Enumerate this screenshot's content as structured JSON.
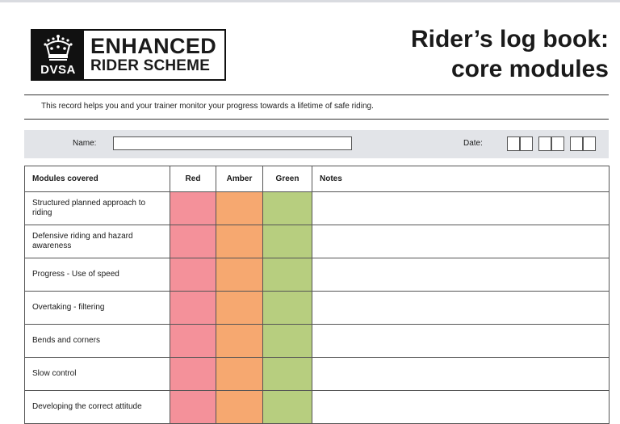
{
  "logo": {
    "line1": "ENHANCED",
    "line2": "RIDER SCHEME",
    "badge": "DVSA",
    "icon": "crown-icon"
  },
  "title": {
    "line1": "Rider’s log book:",
    "line2": "core modules"
  },
  "intro": "This record helps you and your trainer monitor your progress towards a lifetime of safe riding.",
  "form": {
    "name_label": "Name:",
    "name_value": "",
    "date_label": "Date:"
  },
  "table": {
    "headers": {
      "module": "Modules covered",
      "red": "Red",
      "amber": "Amber",
      "green": "Green",
      "notes": "Notes"
    },
    "rows": [
      "Structured planned approach to riding",
      "Defensive riding and hazard awareness",
      "Progress - Use of speed",
      "Overtaking - filtering",
      "Bends and corners",
      "Slow control",
      "Developing the correct attitude"
    ]
  },
  "colors": {
    "red": "#f4919a",
    "amber": "#f6a870",
    "green": "#b7ce7f",
    "bar": "#e2e4e8"
  }
}
